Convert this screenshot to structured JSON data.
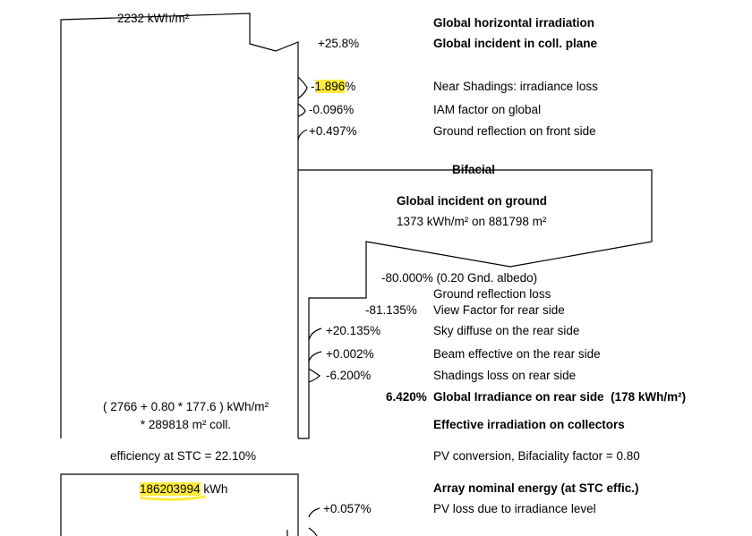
{
  "colors": {
    "highlight": "#ffeb3b",
    "line": "#000000"
  },
  "top": {
    "gh_value": "2232 kWh/m²",
    "transposition": "+25.8%"
  },
  "labels": {
    "ghi": "Global horizontal irradiation",
    "gi": "Global incident in coll. plane",
    "near_shadings": "Near Shadings: irradiance loss",
    "iam": "IAM factor on global",
    "ground_reflection_front": "Ground reflection on front side",
    "bifacial": "Bifacial",
    "gi_ground": "Global incident on ground",
    "ground_loss": "Ground reflection loss",
    "view_factor": "View Factor for rear side",
    "sky_diffuse": "Sky diffuse on the rear side",
    "beam_rear": "Beam effective on the rear side",
    "shadings_rear": "Shadings loss on rear side",
    "rear_irr": "Global Irradiance on rear side",
    "rear_irr_value": "(178 kWh/m²)",
    "effective": "Effective irradiation on collectors",
    "pv_conversion": "PV conversion, Bifaciality factor = 0.80",
    "array_nominal": "Array nominal energy (at STC effic.)",
    "pv_loss_irr": "PV loss due to irradiance level"
  },
  "values": {
    "near_shadings_sign": "-",
    "near_shadings_num": "1.896",
    "near_shadings_pct": "%",
    "iam": "-0.096%",
    "ground_reflection_front": "+0.497%",
    "gi_ground_value": "1373 kWh/m² on 881798 m²",
    "albedo": "-80.000% (0.20 Gnd. albedo)",
    "view_factor": "-81.135%",
    "sky_diffuse": "+20.135%",
    "beam_rear": "+0.002%",
    "shadings_rear": "-6.200%",
    "rear_irr_pct": "6.420%",
    "pv_loss_irr": "+0.057%"
  },
  "formula": {
    "line1": "( 2766 + 0.80 * 177.6 )  kWh/m²",
    "line2": "* 289818 m² coll."
  },
  "efficiency": "efficiency at STC = 22.10%",
  "array": {
    "energy_num": "186203994",
    "energy_unit": " kWh"
  }
}
